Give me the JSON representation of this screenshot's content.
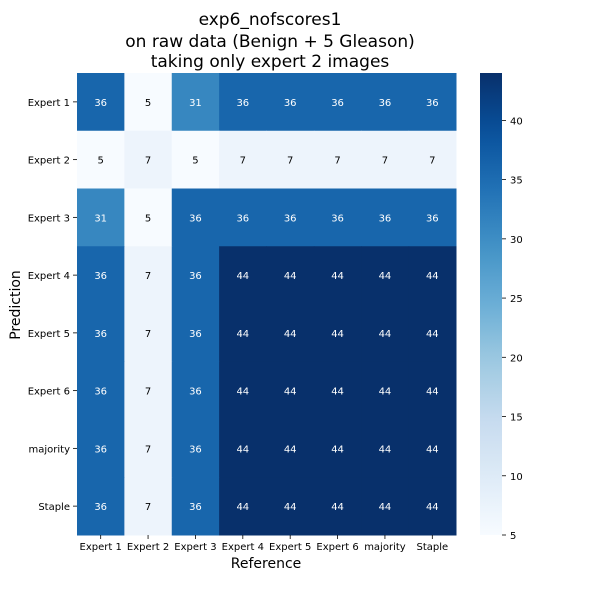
{
  "chart_data": {
    "type": "heatmap",
    "title_lines": [
      "exp6_nofscores1",
      "on raw data (Benign + 5 Gleason)",
      "taking only expert 2 images"
    ],
    "xlabel": "Reference",
    "ylabel": "Prediction",
    "x_categories": [
      "Expert 1",
      "Expert 2",
      "Expert 3",
      "Expert 4",
      "Expert 5",
      "Expert 6",
      "majority",
      "Staple"
    ],
    "y_categories": [
      "Expert 1",
      "Expert 2",
      "Expert 3",
      "Expert 4",
      "Expert 5",
      "Expert 6",
      "majority",
      "Staple"
    ],
    "values": [
      [
        36,
        5,
        31,
        36,
        36,
        36,
        36,
        36
      ],
      [
        5,
        7,
        5,
        7,
        7,
        7,
        7,
        7
      ],
      [
        31,
        5,
        36,
        36,
        36,
        36,
        36,
        36
      ],
      [
        36,
        7,
        36,
        44,
        44,
        44,
        44,
        44
      ],
      [
        36,
        7,
        36,
        44,
        44,
        44,
        44,
        44
      ],
      [
        36,
        7,
        36,
        44,
        44,
        44,
        44,
        44
      ],
      [
        36,
        7,
        36,
        44,
        44,
        44,
        44,
        44
      ],
      [
        36,
        7,
        36,
        44,
        44,
        44,
        44,
        44
      ]
    ],
    "colormap": "Blues",
    "vmin": 5,
    "vmax": 44,
    "colorbar_ticks": [
      5,
      10,
      15,
      20,
      25,
      30,
      35,
      40
    ],
    "annotation_dark_color": "#000000",
    "annotation_light_color": "#ffffff"
  }
}
